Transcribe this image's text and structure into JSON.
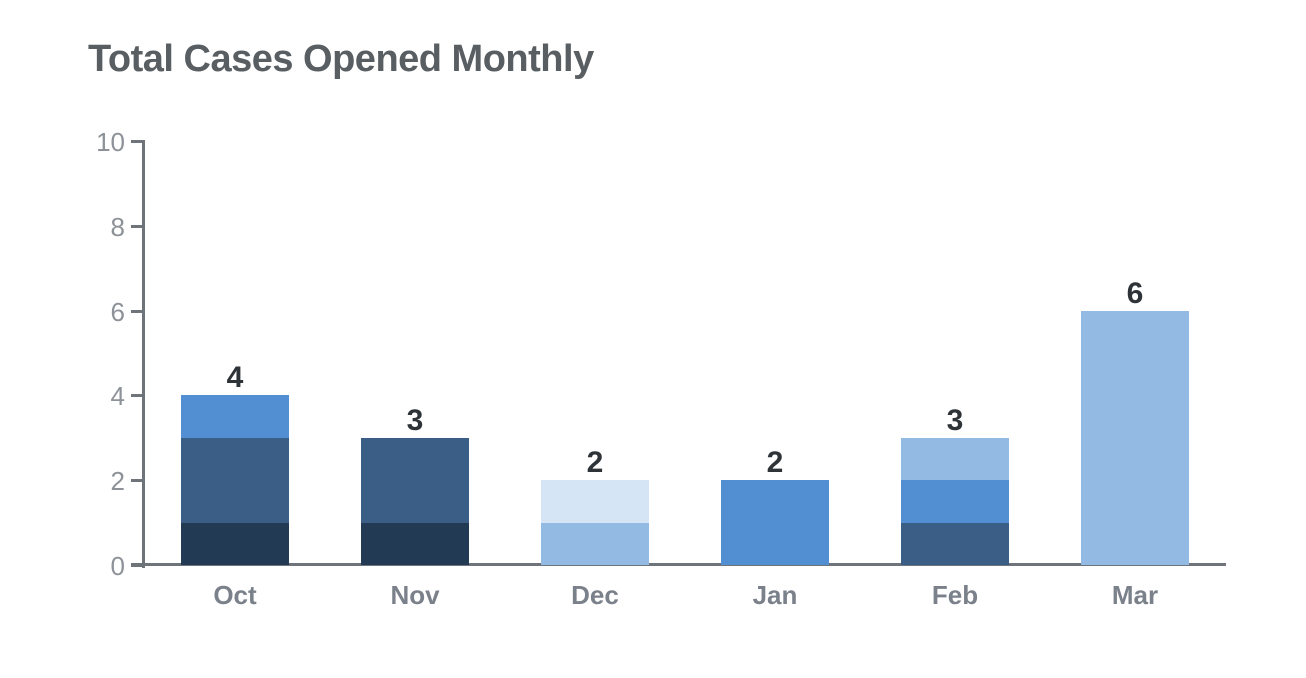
{
  "page": {
    "background": "#ffffff"
  },
  "chart_data": {
    "type": "bar",
    "stacked": true,
    "title": "Total Cases Opened Monthly",
    "title_color": "#595e62",
    "categories": [
      "Oct",
      "Nov",
      "Dec",
      "Jan",
      "Feb",
      "Mar"
    ],
    "totals": [
      4,
      3,
      2,
      2,
      3,
      6
    ],
    "bars": [
      {
        "category": "Oct",
        "total": 4,
        "segments": [
          {
            "value": 1,
            "color": "#223a53"
          },
          {
            "value": 2,
            "color": "#3a5e86"
          },
          {
            "value": 1,
            "color": "#518ed2"
          }
        ]
      },
      {
        "category": "Nov",
        "total": 3,
        "segments": [
          {
            "value": 1,
            "color": "#223a53"
          },
          {
            "value": 2,
            "color": "#3a5e86"
          }
        ]
      },
      {
        "category": "Dec",
        "total": 2,
        "segments": [
          {
            "value": 1,
            "color": "#92bae3"
          },
          {
            "value": 1,
            "color": "#d6e5f5"
          }
        ]
      },
      {
        "category": "Jan",
        "total": 2,
        "segments": [
          {
            "value": 2,
            "color": "#518ed2"
          }
        ]
      },
      {
        "category": "Feb",
        "total": 3,
        "segments": [
          {
            "value": 1,
            "color": "#3a5e86"
          },
          {
            "value": 1,
            "color": "#518ed2"
          },
          {
            "value": 1,
            "color": "#92bae3"
          }
        ]
      },
      {
        "category": "Mar",
        "total": 6,
        "segments": [
          {
            "value": 6,
            "color": "#92bae3"
          }
        ]
      }
    ],
    "segments_order": "bottom-to-top",
    "y_axis": {
      "ticks": [
        0,
        2,
        4,
        6,
        8,
        10
      ],
      "ylim": [
        0,
        10
      ]
    },
    "xlabel": "",
    "ylabel": "",
    "grid": false,
    "value_labels": true,
    "legend": "none",
    "palette": {
      "darkest_blue": "#223a53",
      "dark_blue": "#3a5e86",
      "medium_blue": "#518ed2",
      "light_blue": "#92bae3",
      "pale_blue": "#d6e5f5"
    },
    "axis_color": "#6f747b",
    "tick_label_color": "#8d9298",
    "category_label_color": "#7b818a",
    "value_label_color": "#2e3338"
  }
}
